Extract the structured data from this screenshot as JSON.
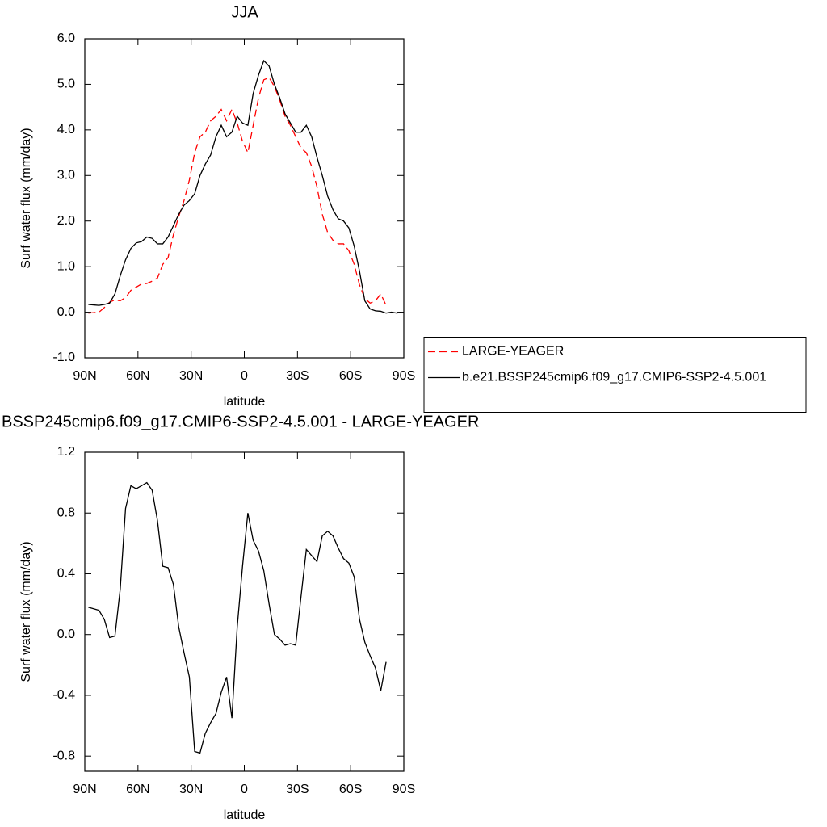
{
  "chart_data": [
    {
      "type": "line",
      "title": "JJA",
      "xlabel": "latitude",
      "ylabel": "Surf water flux (mm/day)",
      "x": [
        88,
        85,
        82,
        79,
        76,
        73,
        70,
        67,
        64,
        61,
        58,
        55,
        52,
        49,
        46,
        43,
        40,
        37,
        34,
        31,
        28,
        25,
        22,
        19,
        16,
        13,
        10,
        7,
        4,
        1,
        -2,
        -5,
        -8,
        -11,
        -14,
        -17,
        -20,
        -23,
        -26,
        -29,
        -32,
        -35,
        -38,
        -41,
        -44,
        -47,
        -50,
        -53,
        -56,
        -59,
        -62,
        -65,
        -68,
        -71,
        -74,
        -77,
        -80,
        -83,
        -86,
        -88
      ],
      "series": [
        {
          "name": "LARGE-YEAGER",
          "color": "#ff0000",
          "line_style": "dashed",
          "values": [
            -0.02,
            -0.01,
            0.0,
            0.1,
            0.22,
            0.27,
            0.25,
            0.32,
            0.48,
            0.55,
            0.62,
            0.63,
            0.68,
            0.75,
            1.05,
            1.2,
            1.7,
            2.1,
            2.45,
            2.9,
            3.5,
            3.85,
            3.95,
            4.2,
            4.3,
            4.45,
            4.2,
            4.45,
            4.15,
            3.75,
            3.5,
            4.1,
            4.7,
            5.1,
            5.15,
            4.95,
            4.65,
            4.3,
            4.1,
            3.85,
            3.6,
            3.5,
            3.2,
            2.75,
            2.15,
            1.75,
            1.58,
            1.5,
            1.5,
            1.35,
            1.05,
            0.6,
            0.3,
            0.2,
            0.25,
            0.4,
            0.15,
            null,
            null,
            null
          ]
        },
        {
          "name": "b.e21.BSSP245cmip6.f09_g17.CMIP6-SSP2-4.5.001",
          "color": "#000000",
          "line_style": "solid",
          "values": [
            0.17,
            0.16,
            0.15,
            0.17,
            0.2,
            0.4,
            0.8,
            1.15,
            1.4,
            1.52,
            1.55,
            1.65,
            1.62,
            1.5,
            1.5,
            1.65,
            1.9,
            2.15,
            2.35,
            2.45,
            2.6,
            3.0,
            3.25,
            3.45,
            3.85,
            4.1,
            3.85,
            3.95,
            4.3,
            4.15,
            4.1,
            4.8,
            5.2,
            5.52,
            5.4,
            5.0,
            4.7,
            4.35,
            4.15,
            3.95,
            3.95,
            4.1,
            3.85,
            3.4,
            3.0,
            2.55,
            2.25,
            2.05,
            2.0,
            1.85,
            1.45,
            0.9,
            0.25,
            0.07,
            0.03,
            0.02,
            -0.02,
            0.0,
            -0.02,
            0.0
          ]
        }
      ],
      "xlim": [
        90,
        -90
      ],
      "xticks": [
        {
          "value": 90,
          "label": "90N"
        },
        {
          "value": 60,
          "label": "60N"
        },
        {
          "value": 30,
          "label": "30N"
        },
        0,
        {
          "value": -30,
          "label": "30S"
        },
        {
          "value": -60,
          "label": "60S"
        },
        {
          "value": -90,
          "label": "90S"
        }
      ],
      "ylim": [
        -1,
        6
      ],
      "yticks": [
        {
          "value": -1,
          "label": "-1.0"
        },
        {
          "value": 0,
          "label": "0.0"
        },
        {
          "value": 1,
          "label": "1.0"
        },
        {
          "value": 2,
          "label": "2.0"
        },
        {
          "value": 3,
          "label": "3.0"
        },
        {
          "value": 4,
          "label": "4.0"
        },
        {
          "value": 5,
          "label": "5.0"
        },
        {
          "value": 6,
          "label": "6.0"
        }
      ],
      "legend": "right"
    },
    {
      "type": "line",
      "title": "BSSP245cmip6.f09_g17.CMIP6-SSP2-4.5.001 - LARGE-YEAGER",
      "xlabel": "latitude",
      "ylabel": "Surf water flux (mm/day)",
      "x": [
        88,
        85,
        82,
        79,
        76,
        73,
        70,
        67,
        64,
        61,
        58,
        55,
        52,
        49,
        46,
        43,
        40,
        37,
        34,
        31,
        28,
        25,
        22,
        19,
        16,
        13,
        10,
        7,
        4,
        1,
        -2,
        -5,
        -8,
        -11,
        -14,
        -17,
        -20,
        -23,
        -26,
        -29,
        -32,
        -35,
        -38,
        -41,
        -44,
        -47,
        -50,
        -53,
        -56,
        -59,
        -62,
        -65,
        -68,
        -71,
        -74,
        -77,
        -80,
        -83,
        -86,
        -88
      ],
      "series": [
        {
          "color": "#000000",
          "line_style": "solid",
          "values": [
            0.18,
            0.17,
            0.16,
            0.1,
            -0.02,
            -0.01,
            0.3,
            0.83,
            0.98,
            0.96,
            0.98,
            1.0,
            0.95,
            0.75,
            0.45,
            0.44,
            0.33,
            0.05,
            -0.12,
            -0.28,
            -0.77,
            -0.78,
            -0.65,
            -0.58,
            -0.52,
            -0.38,
            -0.28,
            -0.55,
            0.05,
            0.45,
            0.8,
            0.62,
            0.55,
            0.42,
            0.2,
            0.0,
            -0.03,
            -0.07,
            -0.06,
            -0.07,
            0.25,
            0.56,
            0.52,
            0.48,
            0.65,
            0.68,
            0.65,
            0.57,
            0.5,
            0.47,
            0.38,
            0.1,
            -0.05,
            -0.14,
            -0.22,
            -0.37,
            -0.18,
            null,
            null,
            null
          ]
        }
      ],
      "xlim": [
        90,
        -90
      ],
      "xticks": [
        {
          "value": 90,
          "label": "90N"
        },
        {
          "value": 60,
          "label": "60N"
        },
        {
          "value": 30,
          "label": "30N"
        },
        0,
        {
          "value": -30,
          "label": "30S"
        },
        {
          "value": -60,
          "label": "60S"
        },
        {
          "value": -90,
          "label": "90S"
        }
      ],
      "ylim": [
        -0.9,
        1.2
      ],
      "yticks": [
        -0.8,
        -0.4,
        {
          "value": 0,
          "label": "0.0"
        },
        0.4,
        0.8,
        1.2
      ]
    }
  ]
}
